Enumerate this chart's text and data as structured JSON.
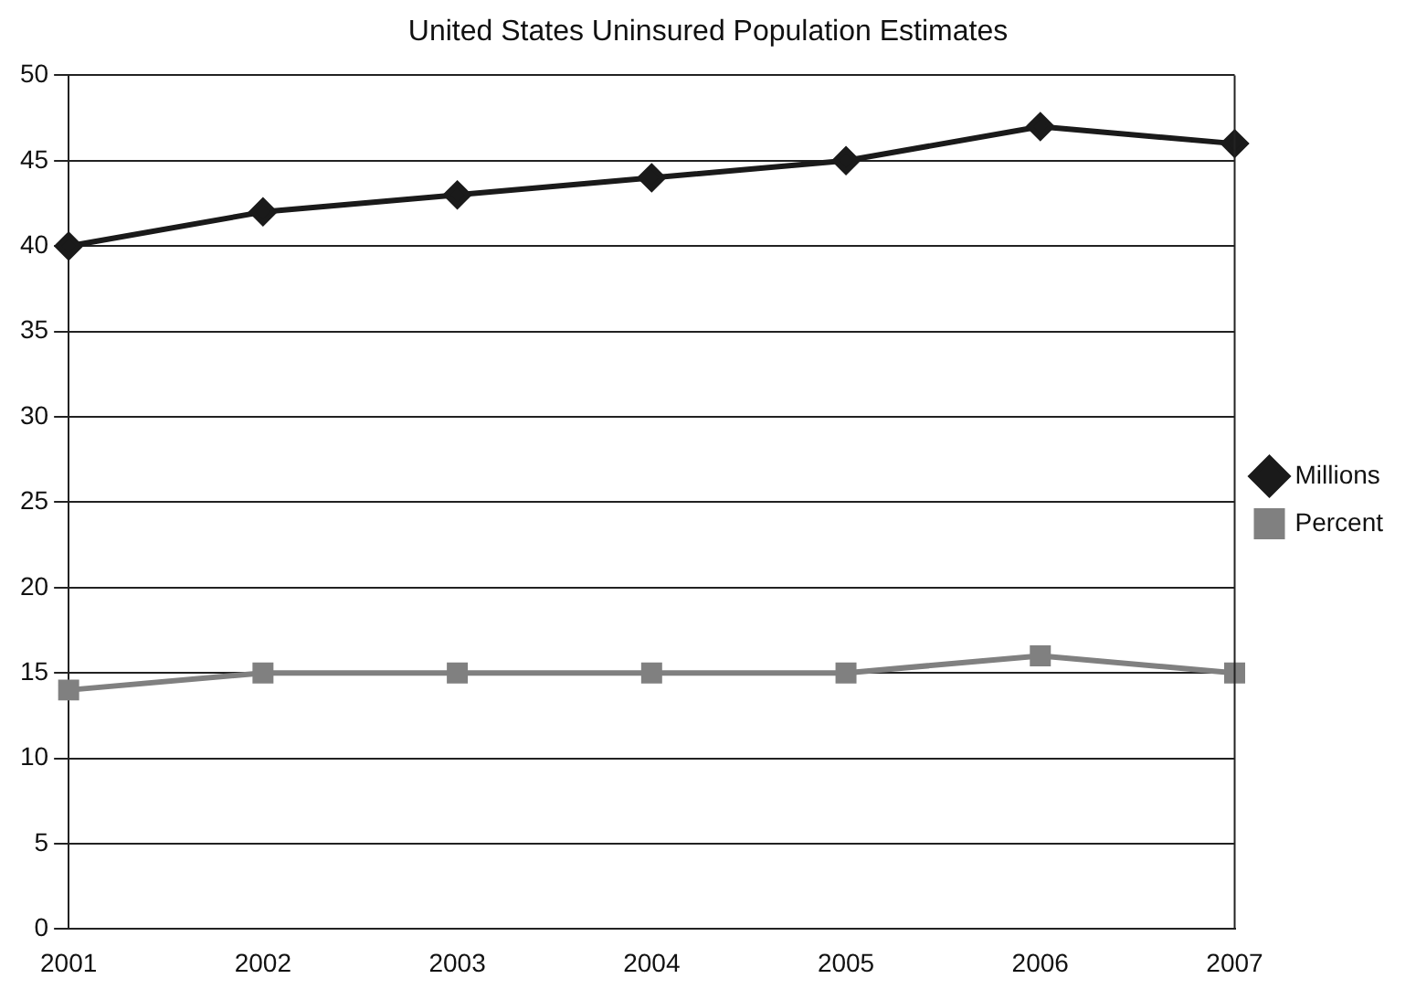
{
  "chart_data": {
    "type": "line",
    "title": "United States Uninsured Population Estimates",
    "categories": [
      "2001",
      "2002",
      "2003",
      "2004",
      "2005",
      "2006",
      "2007"
    ],
    "series": [
      {
        "name": "Millions",
        "color": "#1a1a1a",
        "marker": "diamond",
        "values": [
          40,
          42,
          43,
          44,
          45,
          47,
          46
        ]
      },
      {
        "name": "Percent",
        "color": "#808080",
        "marker": "square",
        "values": [
          14,
          15,
          15,
          15,
          15,
          16,
          15
        ]
      }
    ],
    "ylim": [
      0,
      50
    ],
    "yticks": [
      0,
      5,
      10,
      15,
      20,
      25,
      30,
      35,
      40,
      45,
      50
    ],
    "grid": "y",
    "legend": "right",
    "line_style": "solid"
  }
}
